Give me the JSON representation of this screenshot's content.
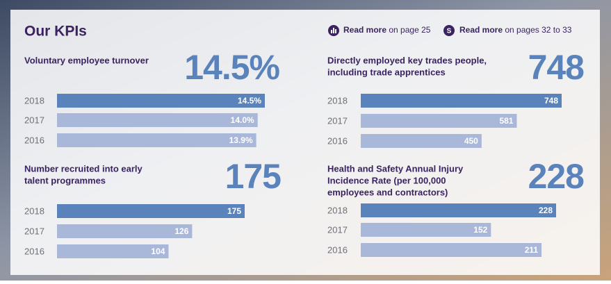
{
  "header": {
    "title": "Our KPIs",
    "links": [
      {
        "icon": "",
        "bold": "Read more",
        "text": "on page 25"
      },
      {
        "icon": "S",
        "bold": "Read more",
        "text": "on pages 32 to 33"
      }
    ]
  },
  "chart_data": [
    {
      "type": "bar",
      "title": [
        "Voluntary employee turnover"
      ],
      "headline": "14.5%",
      "categories": [
        "2018",
        "2017",
        "2016"
      ],
      "values": [
        14.5,
        14.0,
        13.9
      ],
      "value_labels": [
        "14.5%",
        "14.0%",
        "13.9%"
      ],
      "colors": [
        "#5b83bb",
        "#a9b7d9",
        "#a9b7d9"
      ]
    },
    {
      "type": "bar",
      "title": [
        "Directly employed key trades people,",
        "including trade apprentices"
      ],
      "headline": "748",
      "categories": [
        "2018",
        "2017",
        "2016"
      ],
      "values": [
        748,
        581,
        450
      ],
      "colors": [
        "#5b83bb",
        "#a9b7d9",
        "#a9b7d9"
      ]
    },
    {
      "type": "bar",
      "title": [
        "Number recruited into early",
        "talent programmes"
      ],
      "headline": "175",
      "categories": [
        "2018",
        "2017",
        "2016"
      ],
      "values": [
        175,
        126,
        104
      ],
      "colors": [
        "#5b83bb",
        "#a9b7d9",
        "#a9b7d9"
      ]
    },
    {
      "type": "bar",
      "title": [
        "Health and Safety Annual Injury",
        "Incidence Rate (per 100,000",
        "employees and contractors)"
      ],
      "headline": "228",
      "categories": [
        "2018",
        "2017",
        "2016"
      ],
      "values": [
        228,
        152,
        211
      ],
      "colors": [
        "#5b83bb",
        "#a9b7d9",
        "#a9b7d9"
      ]
    }
  ]
}
